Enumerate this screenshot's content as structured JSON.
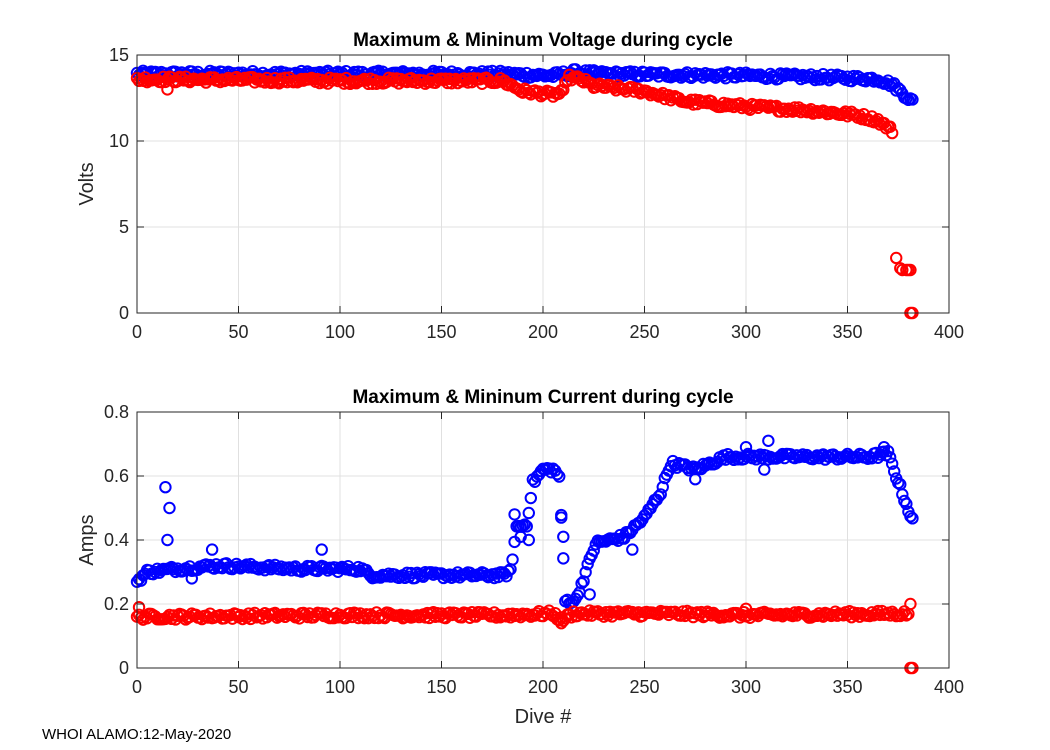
{
  "footer": "WHOI ALAMO:12-May-2020",
  "colors": {
    "max": "#0000ff",
    "min": "#ff0000",
    "grid": "#e0e0e0",
    "axis": "#262626"
  },
  "chart_data": [
    {
      "type": "scatter",
      "title": "Maximum & Mininum Voltage during cycle",
      "xlabel": "",
      "ylabel": "Volts",
      "xlim": [
        0,
        400
      ],
      "ylim": [
        0,
        15
      ],
      "xticks": [
        0,
        50,
        100,
        150,
        200,
        250,
        300,
        350,
        400
      ],
      "yticks": [
        0,
        5,
        10,
        15
      ],
      "grid": true,
      "series": [
        {
          "name": "Maximum",
          "color": "#0000ff",
          "trend": [
            [
              0,
              13.9
            ],
            [
              100,
              13.9
            ],
            [
              180,
              13.9
            ],
            [
              205,
              13.8
            ],
            [
              210,
              13.9
            ],
            [
              215,
              14.0
            ],
            [
              230,
              13.9
            ],
            [
              300,
              13.8
            ],
            [
              340,
              13.7
            ],
            [
              365,
              13.6
            ],
            [
              372,
              13.3
            ],
            [
              378,
              12.7
            ],
            [
              382,
              12.3
            ]
          ],
          "outliers": []
        },
        {
          "name": "Minimum",
          "color": "#ff0000",
          "trend": [
            [
              0,
              13.6
            ],
            [
              100,
              13.5
            ],
            [
              180,
              13.5
            ],
            [
              190,
              12.9
            ],
            [
              205,
              12.7
            ],
            [
              210,
              12.8
            ],
            [
              212,
              13.7
            ],
            [
              218,
              13.6
            ],
            [
              225,
              13.2
            ],
            [
              250,
              12.9
            ],
            [
              270,
              12.3
            ],
            [
              300,
              12.0
            ],
            [
              330,
              11.8
            ],
            [
              355,
              11.5
            ],
            [
              365,
              11.2
            ],
            [
              372,
              10.6
            ]
          ],
          "outliers": [
            [
              15,
              13.0
            ],
            [
              374,
              3.2
            ],
            [
              376,
              2.6
            ],
            [
              377,
              2.5
            ],
            [
              379,
              2.5
            ],
            [
              380,
              2.5
            ],
            [
              381,
              2.5
            ],
            [
              381,
              0.0
            ],
            [
              382,
              0.0
            ]
          ]
        }
      ]
    },
    {
      "type": "scatter",
      "title": "Maximum & Mininum Current during cycle",
      "xlabel": "Dive #",
      "ylabel": "Amps",
      "xlim": [
        0,
        400
      ],
      "ylim": [
        0,
        0.8
      ],
      "xticks": [
        0,
        50,
        100,
        150,
        200,
        250,
        300,
        350,
        400
      ],
      "yticks": [
        0,
        0.2,
        0.4,
        0.6,
        0.8
      ],
      "grid": true,
      "series": [
        {
          "name": "Maximum",
          "color": "#0000ff",
          "trend": [
            [
              0,
              0.27
            ],
            [
              5,
              0.3
            ],
            [
              20,
              0.31
            ],
            [
              40,
              0.32
            ],
            [
              80,
              0.31
            ],
            [
              110,
              0.31
            ],
            [
              115,
              0.29
            ],
            [
              150,
              0.29
            ],
            [
              180,
              0.29
            ],
            [
              184,
              0.3
            ],
            [
              187,
              0.44
            ],
            [
              192,
              0.45
            ],
            [
              195,
              0.58
            ],
            [
              200,
              0.62
            ],
            [
              205,
              0.62
            ],
            [
              208,
              0.6
            ],
            [
              211,
              0.21
            ],
            [
              216,
              0.21
            ],
            [
              220,
              0.28
            ],
            [
              226,
              0.39
            ],
            [
              240,
              0.41
            ],
            [
              250,
              0.47
            ],
            [
              258,
              0.55
            ],
            [
              263,
              0.64
            ],
            [
              275,
              0.62
            ],
            [
              290,
              0.66
            ],
            [
              320,
              0.66
            ],
            [
              360,
              0.66
            ],
            [
              370,
              0.67
            ],
            [
              374,
              0.6
            ],
            [
              378,
              0.53
            ],
            [
              382,
              0.46
            ]
          ],
          "outliers": [
            [
              14,
              0.565
            ],
            [
              16,
              0.5
            ],
            [
              15,
              0.4
            ],
            [
              37,
              0.37
            ],
            [
              91,
              0.37
            ],
            [
              27,
              0.28
            ],
            [
              186,
              0.48
            ],
            [
              189,
              0.41
            ],
            [
              193,
              0.4
            ],
            [
              209,
              0.47
            ],
            [
              210,
              0.41
            ],
            [
              223,
              0.23
            ],
            [
              244,
              0.37
            ],
            [
              300,
              0.69
            ],
            [
              311,
              0.71
            ],
            [
              309,
              0.62
            ],
            [
              275,
              0.59
            ],
            [
              368,
              0.69
            ]
          ]
        },
        {
          "name": "Minimum",
          "color": "#ff0000",
          "trend": [
            [
              0,
              0.16
            ],
            [
              100,
              0.165
            ],
            [
              180,
              0.165
            ],
            [
              205,
              0.17
            ],
            [
              209,
              0.15
            ],
            [
              215,
              0.17
            ],
            [
              260,
              0.17
            ],
            [
              300,
              0.165
            ],
            [
              380,
              0.17
            ]
          ],
          "outliers": [
            [
              1,
              0.19
            ],
            [
              209,
              0.14
            ],
            [
              300,
              0.185
            ],
            [
              381,
              0.2
            ],
            [
              381,
              0.0
            ],
            [
              382,
              0.0
            ]
          ]
        }
      ]
    }
  ]
}
